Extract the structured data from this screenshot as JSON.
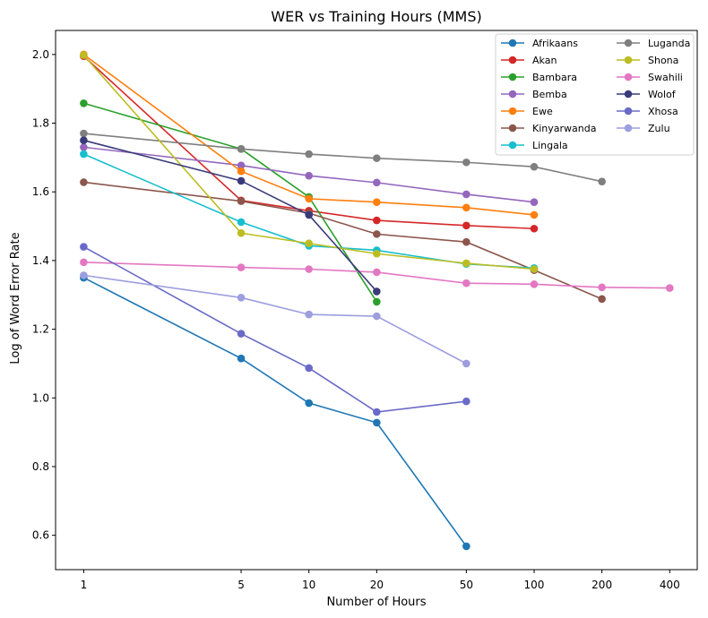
{
  "chart_data": {
    "type": "line",
    "title": "WER vs Training Hours (MMS)",
    "xlabel": "Number of Hours",
    "ylabel": "Log of Word Error Rate",
    "xscale": "log",
    "x_ticks": [
      1,
      5,
      10,
      20,
      50,
      100,
      200,
      400
    ],
    "y_ticks": [
      "0.6",
      "0.8",
      "1.0",
      "1.2",
      "1.4",
      "1.6",
      "1.8",
      "2.0"
    ],
    "xlim": [
      0.75,
      530
    ],
    "ylim": [
      0.5,
      2.07
    ],
    "grid": false,
    "legend_position": "top-right",
    "series": [
      {
        "name": "Afrikaans",
        "color": "#1f77b4",
        "x": [
          1,
          5,
          10,
          20,
          50
        ],
        "y": [
          1.35,
          1.115,
          0.985,
          0.928,
          0.568
        ]
      },
      {
        "name": "Akan",
        "color": "#d62728",
        "x": [
          1,
          5,
          10,
          20,
          50,
          100
        ],
        "y": [
          1.995,
          1.575,
          1.545,
          1.517,
          1.502,
          1.493
        ]
      },
      {
        "name": "Bambara",
        "color": "#2ca02c",
        "x": [
          1,
          5,
          10,
          20
        ],
        "y": [
          1.858,
          1.725,
          1.585,
          1.28
        ]
      },
      {
        "name": "Bemba",
        "color": "#9467bd",
        "x": [
          1,
          5,
          10,
          20,
          50,
          100
        ],
        "y": [
          1.73,
          1.677,
          1.647,
          1.627,
          1.593,
          1.57
        ]
      },
      {
        "name": "Ewe",
        "color": "#ff7f0e",
        "x": [
          1,
          5,
          10,
          20,
          50,
          100
        ],
        "y": [
          2.0,
          1.66,
          1.58,
          1.57,
          1.554,
          1.533
        ]
      },
      {
        "name": "Kinyarwanda",
        "color": "#8c564b",
        "x": [
          1,
          5,
          10,
          20,
          50,
          100,
          200
        ],
        "y": [
          1.628,
          1.573,
          1.538,
          1.477,
          1.454,
          1.372,
          1.288
        ]
      },
      {
        "name": "Lingala",
        "color": "#17becf",
        "x": [
          1,
          5,
          10,
          20,
          50,
          100
        ],
        "y": [
          1.71,
          1.512,
          1.443,
          1.43,
          1.39,
          1.378
        ]
      },
      {
        "name": "Luganda",
        "color": "#7f7f7f",
        "x": [
          1,
          5,
          10,
          20,
          50,
          100,
          200
        ],
        "y": [
          1.77,
          1.725,
          1.71,
          1.698,
          1.686,
          1.673,
          1.63
        ]
      },
      {
        "name": "Shona",
        "color": "#bcbd22",
        "x": [
          1,
          5,
          10,
          20,
          50,
          100
        ],
        "y": [
          1.998,
          1.48,
          1.45,
          1.42,
          1.392,
          1.375
        ]
      },
      {
        "name": "Swahili",
        "color": "#e377c2",
        "x": [
          1,
          5,
          10,
          20,
          50,
          100,
          200,
          400
        ],
        "y": [
          1.395,
          1.38,
          1.375,
          1.366,
          1.334,
          1.331,
          1.322,
          1.32
        ]
      },
      {
        "name": "Wolof",
        "color": "#393b79",
        "x": [
          1,
          5,
          10,
          20
        ],
        "y": [
          1.75,
          1.632,
          1.533,
          1.31
        ]
      },
      {
        "name": "Xhosa",
        "color": "#6a6ac8",
        "x": [
          1,
          5,
          10,
          20,
          50
        ],
        "y": [
          1.44,
          1.187,
          1.087,
          0.959,
          0.99
        ]
      },
      {
        "name": "Zulu",
        "color": "#9c9ede",
        "x": [
          1,
          5,
          10,
          20,
          50
        ],
        "y": [
          1.357,
          1.292,
          1.243,
          1.238,
          1.1
        ]
      }
    ]
  }
}
